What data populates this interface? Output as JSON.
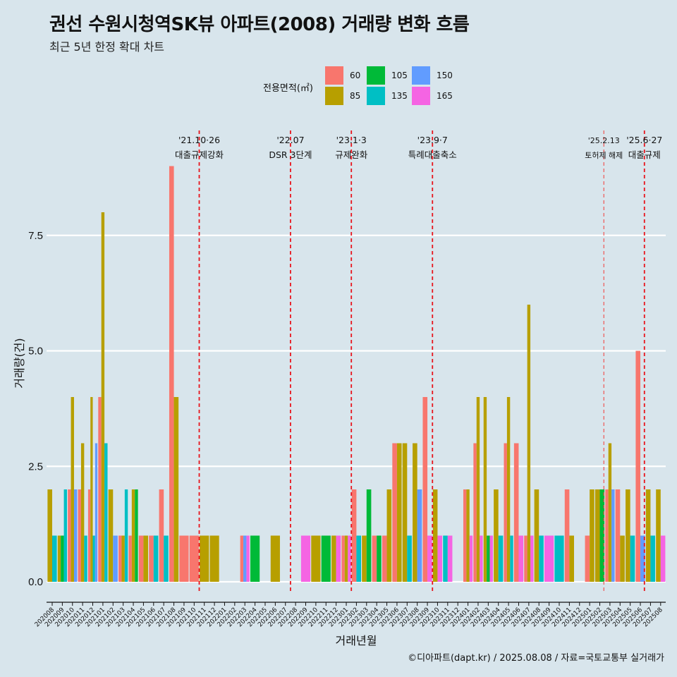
{
  "title": "권선 수원시청역SK뷰 아파트(2008) 거래량 변화 흐름",
  "subtitle": "최근 5년 한정 확대 차트",
  "caption": "©디아파트(dapt.kr) / 2025.08.08 / 자료=국토교통부 실거래가",
  "legend": {
    "title": "전용면적(㎡)",
    "items": [
      {
        "label": "60",
        "color": "#F8766D"
      },
      {
        "label": "85",
        "color": "#B79F00"
      },
      {
        "label": "105",
        "color": "#00BA38"
      },
      {
        "label": "135",
        "color": "#00BFC4"
      },
      {
        "label": "150",
        "color": "#619CFF"
      },
      {
        "label": "165",
        "color": "#F564E3"
      }
    ]
  },
  "chart_data": {
    "type": "bar",
    "xlabel": "거래년월",
    "ylabel": "거래량(건)",
    "ylim": [
      0,
      9
    ],
    "yticks": [
      0.0,
      2.5,
      5.0,
      7.5
    ],
    "ytick_labels": [
      "0.0",
      "2.5",
      "5.0",
      "7.5"
    ],
    "months": [
      "202008",
      "202009",
      "202010",
      "202011",
      "202012",
      "202101",
      "202102",
      "202103",
      "202104",
      "202105",
      "202106",
      "202107",
      "202108",
      "202109",
      "202110",
      "202111",
      "202112",
      "202201",
      "202202",
      "202203",
      "202204",
      "202205",
      "202206",
      "202207",
      "202208",
      "202209",
      "202210",
      "202211",
      "202212",
      "202301",
      "202302",
      "202303",
      "202304",
      "202305",
      "202306",
      "202307",
      "202308",
      "202309",
      "202310",
      "202311",
      "202312",
      "202401",
      "202402",
      "202403",
      "202404",
      "202405",
      "202406",
      "202407",
      "202408",
      "202409",
      "202410",
      "202411",
      "202412",
      "202501",
      "202502",
      "202503",
      "202504",
      "202505",
      "202506",
      "202507",
      "202508"
    ],
    "series_order": [
      "60",
      "85",
      "105",
      "135",
      "150",
      "165"
    ],
    "bars": [
      {
        "month": "202008",
        "values": [
          {
            "area": "85",
            "count": 2
          },
          {
            "area": "135",
            "count": 1
          }
        ]
      },
      {
        "month": "202009",
        "values": [
          {
            "area": "85",
            "count": 1
          },
          {
            "area": "105",
            "count": 1
          },
          {
            "area": "135",
            "count": 2
          }
        ]
      },
      {
        "month": "202010",
        "values": [
          {
            "area": "60",
            "count": 2
          },
          {
            "area": "85",
            "count": 4
          },
          {
            "area": "150",
            "count": 2
          }
        ]
      },
      {
        "month": "202011",
        "values": [
          {
            "area": "60",
            "count": 2
          },
          {
            "area": "85",
            "count": 3
          },
          {
            "area": "135",
            "count": 1
          }
        ]
      },
      {
        "month": "202012",
        "values": [
          {
            "area": "60",
            "count": 2
          },
          {
            "area": "85",
            "count": 4
          },
          {
            "area": "135",
            "count": 1
          },
          {
            "area": "150",
            "count": 3
          }
        ]
      },
      {
        "month": "202101",
        "values": [
          {
            "area": "60",
            "count": 4
          },
          {
            "area": "85",
            "count": 8
          },
          {
            "area": "135",
            "count": 3
          }
        ]
      },
      {
        "month": "202102",
        "values": [
          {
            "area": "85",
            "count": 2
          },
          {
            "area": "150",
            "count": 1
          }
        ]
      },
      {
        "month": "202103",
        "values": [
          {
            "area": "60",
            "count": 1
          },
          {
            "area": "85",
            "count": 1
          },
          {
            "area": "135",
            "count": 2
          }
        ]
      },
      {
        "month": "202104",
        "values": [
          {
            "area": "60",
            "count": 1
          },
          {
            "area": "85",
            "count": 2
          },
          {
            "area": "105",
            "count": 2
          }
        ]
      },
      {
        "month": "202105",
        "values": [
          {
            "area": "60",
            "count": 1
          },
          {
            "area": "85",
            "count": 1
          }
        ]
      },
      {
        "month": "202106",
        "values": [
          {
            "area": "60",
            "count": 1
          },
          {
            "area": "135",
            "count": 1
          }
        ]
      },
      {
        "month": "202107",
        "values": [
          {
            "area": "60",
            "count": 2
          },
          {
            "area": "135",
            "count": 1
          }
        ]
      },
      {
        "month": "202108",
        "values": [
          {
            "area": "60",
            "count": 9
          },
          {
            "area": "85",
            "count": 4
          }
        ]
      },
      {
        "month": "202109",
        "values": [
          {
            "area": "60",
            "count": 1
          }
        ]
      },
      {
        "month": "202110",
        "values": [
          {
            "area": "60",
            "count": 1
          }
        ]
      },
      {
        "month": "202111",
        "values": [
          {
            "area": "85",
            "count": 1
          }
        ]
      },
      {
        "month": "202112",
        "values": [
          {
            "area": "85",
            "count": 1
          }
        ]
      },
      {
        "month": "202201",
        "values": []
      },
      {
        "month": "202202",
        "values": []
      },
      {
        "month": "202203",
        "values": [
          {
            "area": "60",
            "count": 1
          },
          {
            "area": "150",
            "count": 1
          },
          {
            "area": "165",
            "count": 1
          }
        ]
      },
      {
        "month": "202204",
        "values": [
          {
            "area": "105",
            "count": 1
          }
        ]
      },
      {
        "month": "202205",
        "values": []
      },
      {
        "month": "202206",
        "values": [
          {
            "area": "85",
            "count": 1
          }
        ]
      },
      {
        "month": "202207",
        "values": []
      },
      {
        "month": "202208",
        "values": []
      },
      {
        "month": "202209",
        "values": [
          {
            "area": "165",
            "count": 1
          }
        ]
      },
      {
        "month": "202210",
        "values": [
          {
            "area": "85",
            "count": 1
          }
        ]
      },
      {
        "month": "202211",
        "values": [
          {
            "area": "105",
            "count": 1
          }
        ]
      },
      {
        "month": "202212",
        "values": [
          {
            "area": "85",
            "count": 1
          },
          {
            "area": "165",
            "count": 1
          }
        ]
      },
      {
        "month": "202301",
        "values": [
          {
            "area": "60",
            "count": 1
          },
          {
            "area": "85",
            "count": 1
          },
          {
            "area": "165",
            "count": 1
          }
        ]
      },
      {
        "month": "202302",
        "values": [
          {
            "area": "60",
            "count": 2
          },
          {
            "area": "135",
            "count": 1
          }
        ]
      },
      {
        "month": "202303",
        "values": [
          {
            "area": "85",
            "count": 1
          },
          {
            "area": "105",
            "count": 2
          }
        ]
      },
      {
        "month": "202304",
        "values": [
          {
            "area": "60",
            "count": 1
          },
          {
            "area": "105",
            "count": 1
          }
        ]
      },
      {
        "month": "202305",
        "values": [
          {
            "area": "60",
            "count": 1
          },
          {
            "area": "85",
            "count": 2
          }
        ]
      },
      {
        "month": "202306",
        "values": [
          {
            "area": "60",
            "count": 3
          },
          {
            "area": "85",
            "count": 3
          }
        ]
      },
      {
        "month": "202307",
        "values": [
          {
            "area": "85",
            "count": 3
          },
          {
            "area": "135",
            "count": 1
          }
        ]
      },
      {
        "month": "202308",
        "values": [
          {
            "area": "85",
            "count": 3
          },
          {
            "area": "150",
            "count": 2
          }
        ]
      },
      {
        "month": "202309",
        "values": [
          {
            "area": "60",
            "count": 4
          },
          {
            "area": "165",
            "count": 1
          }
        ]
      },
      {
        "month": "202310",
        "values": [
          {
            "area": "85",
            "count": 2
          },
          {
            "area": "165",
            "count": 1
          }
        ]
      },
      {
        "month": "202311",
        "values": [
          {
            "area": "135",
            "count": 1
          },
          {
            "area": "165",
            "count": 1
          }
        ]
      },
      {
        "month": "202312",
        "values": []
      },
      {
        "month": "202401",
        "values": [
          {
            "area": "60",
            "count": 2
          },
          {
            "area": "85",
            "count": 2
          },
          {
            "area": "165",
            "count": 1
          }
        ]
      },
      {
        "month": "202402",
        "values": [
          {
            "area": "60",
            "count": 3
          },
          {
            "area": "85",
            "count": 4
          },
          {
            "area": "165",
            "count": 1
          }
        ]
      },
      {
        "month": "202403",
        "values": [
          {
            "area": "85",
            "count": 4
          },
          {
            "area": "105",
            "count": 1
          },
          {
            "area": "165",
            "count": 1
          }
        ]
      },
      {
        "month": "202404",
        "values": [
          {
            "area": "85",
            "count": 2
          },
          {
            "area": "135",
            "count": 1
          }
        ]
      },
      {
        "month": "202405",
        "values": [
          {
            "area": "60",
            "count": 3
          },
          {
            "area": "85",
            "count": 4
          },
          {
            "area": "135",
            "count": 1
          }
        ]
      },
      {
        "month": "202406",
        "values": [
          {
            "area": "60",
            "count": 3
          },
          {
            "area": "165",
            "count": 1
          }
        ]
      },
      {
        "month": "202407",
        "values": [
          {
            "area": "60",
            "count": 1
          },
          {
            "area": "85",
            "count": 6
          },
          {
            "area": "165",
            "count": 1
          }
        ]
      },
      {
        "month": "202408",
        "values": [
          {
            "area": "85",
            "count": 2
          },
          {
            "area": "135",
            "count": 1
          }
        ]
      },
      {
        "month": "202409",
        "values": [
          {
            "area": "165",
            "count": 1
          }
        ]
      },
      {
        "month": "202410",
        "values": [
          {
            "area": "135",
            "count": 1
          }
        ]
      },
      {
        "month": "202411",
        "values": [
          {
            "area": "60",
            "count": 2
          },
          {
            "area": "85",
            "count": 1
          }
        ]
      },
      {
        "month": "202412",
        "values": []
      },
      {
        "month": "202501",
        "values": [
          {
            "area": "60",
            "count": 1
          },
          {
            "area": "85",
            "count": 2
          }
        ]
      },
      {
        "month": "202502",
        "values": [
          {
            "area": "85",
            "count": 2
          },
          {
            "area": "105",
            "count": 2
          }
        ]
      },
      {
        "month": "202503",
        "values": [
          {
            "area": "60",
            "count": 2
          },
          {
            "area": "85",
            "count": 3
          },
          {
            "area": "150",
            "count": 2
          }
        ]
      },
      {
        "month": "202504",
        "values": [
          {
            "area": "60",
            "count": 2
          },
          {
            "area": "85",
            "count": 1
          }
        ]
      },
      {
        "month": "202505",
        "values": [
          {
            "area": "85",
            "count": 2
          },
          {
            "area": "135",
            "count": 1
          }
        ]
      },
      {
        "month": "202506",
        "values": [
          {
            "area": "60",
            "count": 5
          },
          {
            "area": "150",
            "count": 1
          }
        ]
      },
      {
        "month": "202507",
        "values": [
          {
            "area": "85",
            "count": 2
          },
          {
            "area": "135",
            "count": 1
          }
        ]
      },
      {
        "month": "202508",
        "values": [
          {
            "area": "85",
            "count": 2
          },
          {
            "area": "165",
            "count": 1
          }
        ]
      }
    ],
    "events": [
      {
        "index": 14.5,
        "date": "'21.10·26",
        "label": "대출규제강화",
        "style": "bold"
      },
      {
        "index": 23.5,
        "date": "'22.07",
        "label": "DSR 3단계",
        "style": "bold"
      },
      {
        "index": 29.5,
        "date": "'23.1·3",
        "label": "규제완화",
        "style": "bold"
      },
      {
        "index": 37.5,
        "date": "'23.9·7",
        "label": "특례대출축소",
        "style": "bold"
      },
      {
        "index": 54.4,
        "date": "'25.2.13",
        "label": "토허제 해제",
        "style": "light"
      },
      {
        "index": 58.4,
        "date": "'25.6·27",
        "label": "대출규제",
        "style": "bold"
      }
    ]
  }
}
